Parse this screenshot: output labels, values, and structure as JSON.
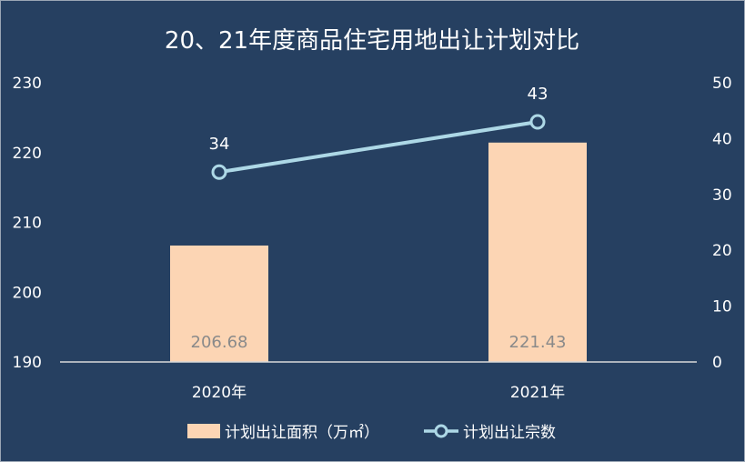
{
  "chart_data": {
    "type": "bar+line",
    "title": "20、21年度商品住宅用地出让计划对比",
    "categories": [
      "2020年",
      "2021年"
    ],
    "series": [
      {
        "name": "计划出让面积（万㎡）",
        "type": "bar",
        "axis": "left",
        "values": [
          206.68,
          221.43
        ],
        "value_labels": [
          "206.68",
          "221.43"
        ],
        "color": "#fcd5b4"
      },
      {
        "name": "计划出让宗数",
        "type": "line",
        "axis": "right",
        "values": [
          34,
          43
        ],
        "value_labels": [
          "34",
          "43"
        ],
        "color": "#add8e6"
      }
    ],
    "y_left": {
      "min": 190,
      "max": 230,
      "ticks": [
        "190",
        "200",
        "210",
        "220",
        "230"
      ]
    },
    "y_right": {
      "min": 0,
      "max": 50,
      "ticks": [
        "0",
        "10",
        "20",
        "30",
        "40",
        "50"
      ]
    },
    "grid": false,
    "legend": "bottom",
    "colors": {
      "background": "#264061",
      "axis": "#d9d9d9",
      "text": "#ffffff"
    }
  }
}
